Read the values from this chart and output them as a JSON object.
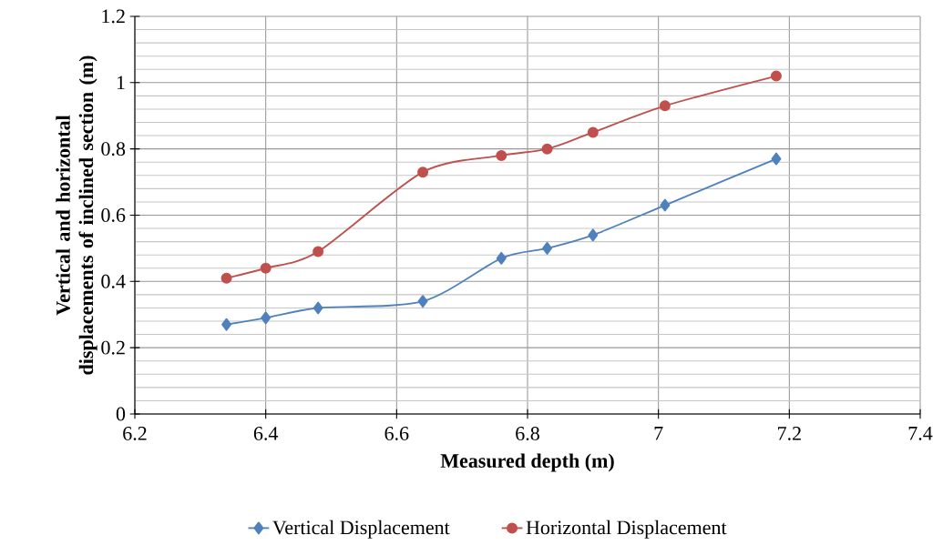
{
  "chart_data": {
    "type": "line",
    "xlabel": "Measured depth (m)",
    "ylabel": "Vertical and horizontal displacements of inclined section (m)",
    "series": [
      {
        "name": "Vertical Displacement",
        "color": "#4f81bd",
        "marker": "diamond",
        "x": [
          6.34,
          6.4,
          6.48,
          6.64,
          6.76,
          6.83,
          6.9,
          7.01,
          7.18
        ],
        "values": [
          0.27,
          0.29,
          0.32,
          0.34,
          0.47,
          0.5,
          0.54,
          0.63,
          0.77
        ]
      },
      {
        "name": "Horizontal Displacement",
        "color": "#c0504d",
        "marker": "circle",
        "x": [
          6.34,
          6.4,
          6.48,
          6.64,
          6.76,
          6.83,
          6.9,
          7.01,
          7.18
        ],
        "values": [
          0.41,
          0.44,
          0.49,
          0.73,
          0.78,
          0.8,
          0.85,
          0.93,
          1.02
        ]
      }
    ],
    "xlim": [
      6.2,
      7.4
    ],
    "ylim": [
      0,
      1.2
    ],
    "xticks": [
      6.2,
      6.4,
      6.6,
      6.8,
      7,
      7.2,
      7.4
    ],
    "yticks": [
      0,
      0.2,
      0.4,
      0.6,
      0.8,
      1,
      1.2
    ],
    "grid": true,
    "legend": "bottom",
    "line_style": "solid"
  }
}
